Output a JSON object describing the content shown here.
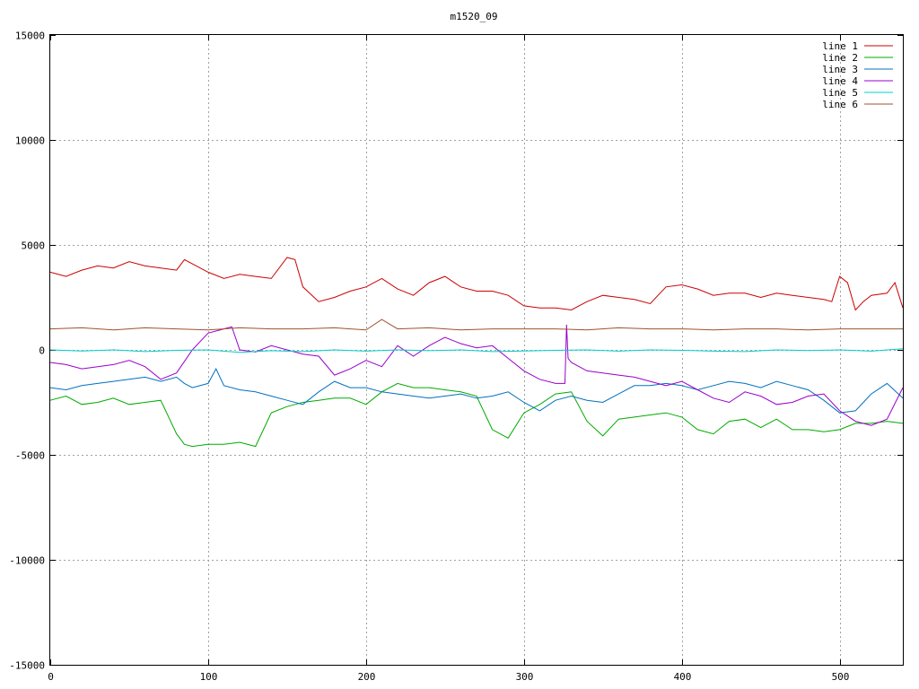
{
  "chart_data": {
    "type": "line",
    "title": "m1520_09",
    "xlabel": "",
    "ylabel": "",
    "xlim": [
      0,
      540
    ],
    "ylim": [
      -15000,
      15000
    ],
    "xticks": [
      0,
      100,
      200,
      300,
      400,
      500
    ],
    "yticks": [
      -15000,
      -10000,
      -5000,
      0,
      5000,
      10000,
      15000
    ],
    "grid": true,
    "legend": "top-right",
    "series": [
      {
        "name": "line 1",
        "color": "#cc0000",
        "x": [
          0,
          10,
          20,
          30,
          40,
          50,
          60,
          70,
          80,
          85,
          90,
          100,
          110,
          120,
          130,
          140,
          150,
          155,
          160,
          170,
          180,
          190,
          200,
          210,
          220,
          230,
          240,
          250,
          260,
          270,
          280,
          290,
          300,
          310,
          320,
          330,
          340,
          350,
          360,
          370,
          380,
          390,
          400,
          410,
          420,
          430,
          440,
          450,
          460,
          470,
          480,
          490,
          495,
          500,
          505,
          510,
          515,
          520,
          530,
          535,
          540
        ],
        "y": [
          3700,
          3500,
          3800,
          4000,
          3900,
          4200,
          4000,
          3900,
          3800,
          4300,
          4100,
          3700,
          3400,
          3600,
          3500,
          3400,
          4400,
          4300,
          3000,
          2300,
          2500,
          2800,
          3000,
          3400,
          2900,
          2600,
          3200,
          3500,
          3000,
          2800,
          2800,
          2600,
          2100,
          2000,
          2000,
          1900,
          2300,
          2600,
          2500,
          2400,
          2200,
          3000,
          3100,
          2900,
          2600,
          2700,
          2700,
          2500,
          2700,
          2600,
          2500,
          2400,
          2300,
          3500,
          3200,
          1900,
          2300,
          2600,
          2700,
          3200,
          2000
        ]
      },
      {
        "name": "line 2",
        "color": "#00aa00",
        "x": [
          0,
          10,
          20,
          30,
          40,
          50,
          60,
          70,
          80,
          85,
          90,
          100,
          110,
          120,
          130,
          140,
          150,
          155,
          160,
          170,
          180,
          190,
          200,
          210,
          220,
          230,
          240,
          250,
          260,
          270,
          280,
          290,
          300,
          310,
          320,
          330,
          340,
          350,
          360,
          370,
          380,
          390,
          400,
          410,
          420,
          430,
          440,
          450,
          460,
          470,
          480,
          490,
          500,
          510,
          520,
          530,
          540
        ],
        "y": [
          -2400,
          -2200,
          -2600,
          -2500,
          -2300,
          -2600,
          -2500,
          -2400,
          -4000,
          -4500,
          -4600,
          -4500,
          -4500,
          -4400,
          -4600,
          -3000,
          -2700,
          -2600,
          -2500,
          -2400,
          -2300,
          -2300,
          -2600,
          -2000,
          -1600,
          -1800,
          -1800,
          -1900,
          -2000,
          -2200,
          -3800,
          -4200,
          -3000,
          -2600,
          -2100,
          -2000,
          -3400,
          -4100,
          -3300,
          -3200,
          -3100,
          -3000,
          -3200,
          -3800,
          -4000,
          -3400,
          -3300,
          -3700,
          -3300,
          -3800,
          -3800,
          -3900,
          -3800,
          -3500,
          -3500,
          -3400,
          -3500
        ]
      },
      {
        "name": "line 3",
        "color": "#0070c0",
        "x": [
          0,
          10,
          20,
          30,
          40,
          50,
          60,
          70,
          80,
          85,
          90,
          100,
          105,
          110,
          120,
          130,
          140,
          150,
          160,
          170,
          180,
          190,
          200,
          210,
          220,
          230,
          240,
          250,
          260,
          270,
          280,
          290,
          300,
          310,
          320,
          330,
          340,
          350,
          360,
          370,
          380,
          390,
          400,
          410,
          420,
          430,
          440,
          450,
          460,
          470,
          480,
          490,
          500,
          510,
          520,
          530,
          540
        ],
        "y": [
          -1800,
          -1900,
          -1700,
          -1600,
          -1500,
          -1400,
          -1300,
          -1500,
          -1300,
          -1600,
          -1800,
          -1600,
          -900,
          -1700,
          -1900,
          -2000,
          -2200,
          -2400,
          -2600,
          -2000,
          -1500,
          -1800,
          -1800,
          -2000,
          -2100,
          -2200,
          -2300,
          -2200,
          -2100,
          -2300,
          -2200,
          -2000,
          -2500,
          -2900,
          -2400,
          -2200,
          -2400,
          -2500,
          -2100,
          -1700,
          -1700,
          -1600,
          -1700,
          -1900,
          -1700,
          -1500,
          -1600,
          -1800,
          -1500,
          -1700,
          -1900,
          -2400,
          -3000,
          -2900,
          -2100,
          -1600,
          -2300
        ]
      },
      {
        "name": "line 4",
        "color": "#9900cc",
        "x": [
          0,
          10,
          20,
          30,
          40,
          50,
          60,
          70,
          80,
          90,
          100,
          110,
          115,
          120,
          130,
          140,
          150,
          160,
          170,
          180,
          190,
          200,
          210,
          220,
          230,
          240,
          250,
          260,
          270,
          280,
          290,
          300,
          310,
          320,
          326,
          327,
          328,
          330,
          340,
          350,
          360,
          370,
          380,
          390,
          400,
          410,
          420,
          430,
          440,
          450,
          460,
          470,
          480,
          490,
          500,
          510,
          520,
          530,
          540
        ],
        "y": [
          -600,
          -700,
          -900,
          -800,
          -700,
          -500,
          -800,
          -1400,
          -1100,
          0,
          800,
          1000,
          1100,
          0,
          -100,
          200,
          0,
          -200,
          -300,
          -1200,
          -900,
          -500,
          -800,
          200,
          -300,
          200,
          600,
          300,
          100,
          200,
          -400,
          -1000,
          -1400,
          -1600,
          -1600,
          1200,
          -400,
          -600,
          -1000,
          -1100,
          -1200,
          -1300,
          -1500,
          -1700,
          -1500,
          -1900,
          -2300,
          -2500,
          -2000,
          -2200,
          -2600,
          -2500,
          -2200,
          -2100,
          -2900,
          -3400,
          -3600,
          -3300,
          -1800
        ]
      },
      {
        "name": "line 5",
        "color": "#00cccc",
        "x": [
          0,
          20,
          40,
          60,
          80,
          100,
          120,
          140,
          160,
          180,
          200,
          220,
          240,
          260,
          280,
          300,
          320,
          340,
          360,
          380,
          400,
          420,
          440,
          460,
          480,
          500,
          520,
          540
        ],
        "y": [
          0,
          -50,
          0,
          -80,
          -20,
          0,
          -120,
          -40,
          -80,
          0,
          -60,
          0,
          -40,
          0,
          -80,
          -50,
          -20,
          0,
          -60,
          0,
          -20,
          -60,
          -80,
          0,
          -30,
          0,
          -60,
          50
        ]
      },
      {
        "name": "line 6",
        "color": "#a0522d",
        "x": [
          0,
          20,
          40,
          60,
          80,
          100,
          120,
          140,
          160,
          180,
          200,
          210,
          220,
          240,
          260,
          280,
          300,
          320,
          340,
          360,
          380,
          400,
          420,
          440,
          460,
          480,
          500,
          520,
          540
        ],
        "y": [
          1000,
          1050,
          950,
          1050,
          1000,
          950,
          1050,
          1000,
          1000,
          1050,
          950,
          1450,
          1000,
          1050,
          950,
          1000,
          1000,
          1000,
          950,
          1050,
          1000,
          1000,
          950,
          1000,
          1000,
          950,
          1000,
          1000,
          1000
        ]
      }
    ]
  }
}
